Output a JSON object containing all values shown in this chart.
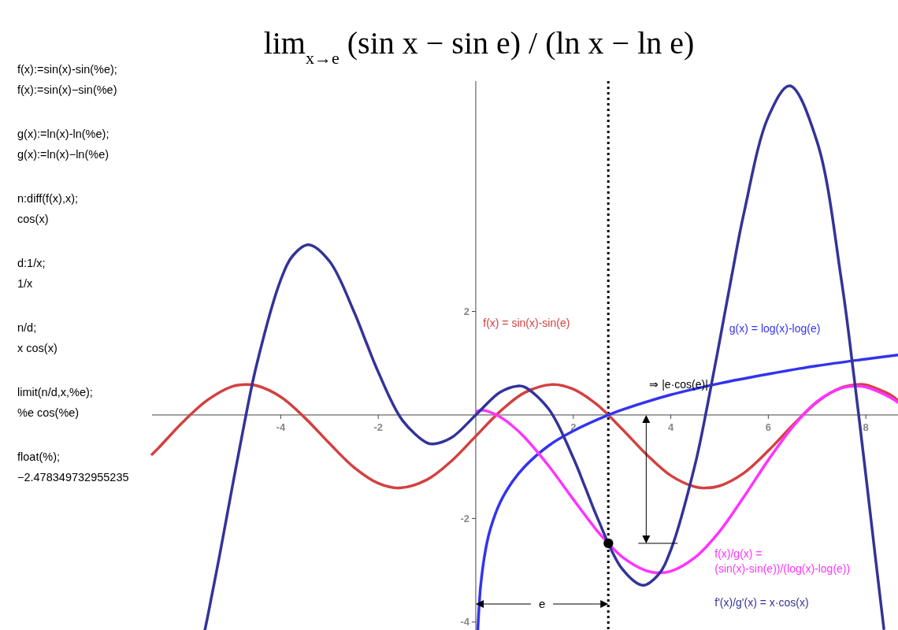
{
  "chart_data": {
    "type": "line",
    "title": "lim$_{x→e}$ (sin x − sin e) / (ln x − ln e)",
    "xlim": [
      -6.64,
      8.66
    ],
    "ylim": [
      -4.2,
      6.45
    ],
    "xticks": [
      -4,
      -2,
      2,
      4,
      6,
      8
    ],
    "yticks": [
      -4,
      -2,
      2
    ],
    "series": [
      {
        "name": "f(x) = sin(x)-sin(e)",
        "color": "#d44040",
        "x": [
          -6.64,
          -6.5,
          -6,
          -5.5,
          -5,
          -4.71,
          -4.5,
          -4,
          -3.5,
          -3,
          -2.5,
          -2,
          -1.57,
          -1,
          -0.5,
          0,
          0.5,
          1,
          1.57,
          2,
          2.5,
          3,
          3.5,
          4,
          4.5,
          4.71,
          5,
          5.5,
          6,
          6.5,
          7,
          7.5,
          7.85,
          8,
          8.5,
          8.66
        ],
        "values": [
          -0.76,
          -0.63,
          -0.13,
          0.29,
          0.55,
          0.59,
          0.57,
          0.35,
          -0.06,
          -0.55,
          -1.01,
          -1.32,
          -1.41,
          -1.25,
          -0.89,
          -0.41,
          0.07,
          0.43,
          0.59,
          0.5,
          0.19,
          -0.27,
          -0.76,
          -1.17,
          -1.39,
          -1.41,
          -1.37,
          -1.12,
          -0.69,
          -0.2,
          0.25,
          0.53,
          0.59,
          0.58,
          0.39,
          0.28
        ]
      },
      {
        "name": "g(x) = log(x)-log(e)",
        "color": "#3333ee",
        "x": [
          0.041,
          0.05,
          0.1,
          0.2,
          0.3,
          0.5,
          0.75,
          1,
          1.5,
          2,
          2.72,
          3,
          4,
          5,
          6,
          7,
          8,
          8.66
        ],
        "values": [
          -4.19,
          -4.0,
          -3.3,
          -2.61,
          -2.2,
          -1.69,
          -1.29,
          -1,
          -0.59,
          -0.31,
          0,
          0.1,
          0.39,
          0.61,
          0.79,
          0.95,
          1.08,
          1.16
        ]
      },
      {
        "name": "f(x)/g(x) = (sin(x)-sin(e))/(log(x)-log(e))",
        "color": "#ff33ff",
        "x": [
          0.01,
          0.1,
          0.25,
          0.5,
          0.75,
          1,
          1.5,
          2,
          2.5,
          2.72,
          3,
          3.5,
          3.75,
          4,
          4.5,
          5,
          5.5,
          6,
          6.5,
          7,
          7.5,
          7.8,
          8,
          8.5,
          8.66
        ],
        "values": [
          0.07,
          0.09,
          0.07,
          -0.04,
          -0.21,
          -0.43,
          -0.99,
          -1.63,
          -2.25,
          -2.48,
          -2.74,
          -3.01,
          -3.05,
          -3.02,
          -2.75,
          -2.25,
          -1.58,
          -0.87,
          -0.23,
          0.26,
          0.52,
          0.56,
          0.54,
          0.34,
          0.24
        ]
      },
      {
        "name": "f'(x)/g'(x) = x·cos(x)",
        "color": "#333399",
        "x": [
          -5.56,
          -5.5,
          -5.25,
          -5,
          -4.75,
          -4.5,
          -4,
          -3.75,
          -3.43,
          -3,
          -2.5,
          -2.25,
          -2,
          -1.5,
          -1,
          -0.86,
          -0.5,
          0,
          0.5,
          0.86,
          1,
          1.5,
          2,
          2.25,
          2.5,
          3,
          3.43,
          3.75,
          4,
          4.5,
          4.75,
          5,
          5.25,
          5.5,
          6,
          6.44,
          7,
          7.5,
          7.75,
          8,
          8.2,
          8.37
        ],
        "values": [
          -4.17,
          -3.9,
          -2.69,
          -1.42,
          -0.18,
          0.95,
          2.61,
          3.08,
          3.29,
          2.97,
          2.0,
          1.41,
          0.83,
          -0.11,
          -0.54,
          -0.56,
          -0.44,
          0,
          0.44,
          0.56,
          0.54,
          0.11,
          -0.83,
          -1.41,
          -2.0,
          -2.97,
          -3.29,
          -3.08,
          -2.61,
          -0.95,
          0.18,
          1.42,
          2.69,
          3.9,
          5.76,
          6.36,
          5.28,
          2.6,
          0.8,
          -1.16,
          -2.78,
          -4.13
        ]
      },
      {
        "type": "scatter",
        "color": "#000000",
        "marker": "circle",
        "x": [
          2.72
        ],
        "values": [
          -2.48
        ]
      }
    ],
    "ref_lines": [
      {
        "axis": "x",
        "value": 2.718,
        "color": "#000000",
        "line_style": "dotted"
      }
    ],
    "annotations": [
      "f(x):=sin(x)-sin(%e);",
      "f(x):=sin(x)−sin(%e)",
      "g(x):=ln(x)-ln(%e);",
      "g(x):=ln(x)−ln(%e)",
      "n:diff(f(x),x);",
      "cos(x)",
      "d:1/x;",
      "1/x",
      "n/d;",
      "x cos(x)",
      "limit(n/d,x,%e);",
      "%e cos(%e)",
      "float(%);",
      "−2.478349732955235",
      "⇒ |e·cos(e)|",
      "e"
    ]
  }
}
